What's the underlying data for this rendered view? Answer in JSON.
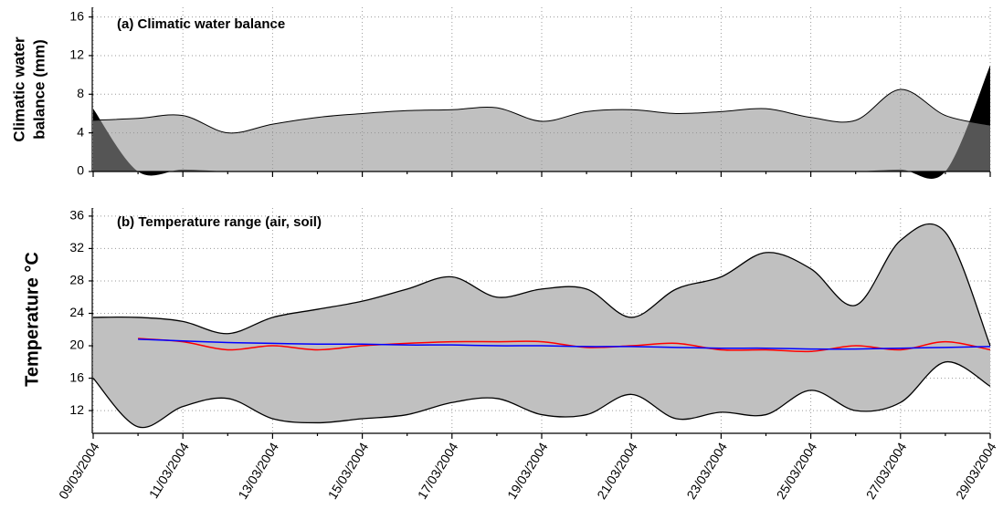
{
  "chart_data": [
    {
      "type": "area",
      "title": "(a) Climatic water balance",
      "ylabel": [
        "Climatic water",
        "balance (mm)"
      ],
      "series": [
        {
          "color": "#000000",
          "opacity": 1,
          "values": [
            6.5,
            0,
            0.2,
            0,
            0,
            0,
            0,
            0,
            0,
            0,
            0,
            0,
            0,
            0,
            0,
            0,
            0,
            0,
            0.2,
            0,
            11
          ]
        },
        {
          "color": "#929292",
          "opacity": 0.58,
          "values": [
            5.3,
            5.5,
            5.8,
            4.0,
            4.9,
            5.6,
            6.0,
            6.3,
            6.4,
            6.6,
            5.2,
            6.2,
            6.4,
            6.0,
            6.2,
            6.5,
            5.6,
            5.3,
            8.5,
            5.8,
            4.8
          ]
        }
      ],
      "ylim": [
        0,
        17
      ],
      "yticks": [
        0,
        4,
        8,
        12,
        16
      ],
      "grid": true
    },
    {
      "type": "line",
      "title": "(b) Temperature range (air, soil)",
      "ylabel": "Temperature °C",
      "categories": [
        "09/03/2004",
        null,
        "11/03/2004",
        null,
        "13/03/2004",
        null,
        "15/03/2004",
        null,
        "17/03/2004",
        null,
        "19/03/2004",
        null,
        "21/03/2004",
        null,
        "23/03/2004",
        null,
        "25/03/2004",
        null,
        "27/03/2004",
        null,
        "29/03/2004"
      ],
      "band": {
        "color": "#c0c0c0",
        "upper": [
          23.5,
          23.5,
          23,
          21.5,
          23.5,
          24.5,
          25.5,
          27,
          28.5,
          26,
          27,
          27,
          23.5,
          27,
          28.5,
          31.5,
          29.5,
          25,
          33,
          34,
          20
        ],
        "lower": [
          16,
          10,
          12.5,
          13.5,
          11,
          10.5,
          11,
          11.5,
          13,
          13.5,
          11.5,
          11.5,
          14,
          11,
          11.8,
          11.5,
          14.5,
          12,
          13,
          18,
          15
        ]
      },
      "series": [
        {
          "color": "#ff0000",
          "values": [
            null,
            20.9,
            20.5,
            19.5,
            20,
            19.5,
            20,
            20.3,
            20.5,
            20.5,
            20.5,
            19.8,
            20,
            20.3,
            19.5,
            19.5,
            19.3,
            20,
            19.5,
            20.5,
            19.5
          ]
        },
        {
          "color": "#0000ff",
          "values": [
            null,
            20.8,
            20.6,
            20.4,
            20.3,
            20.2,
            20.2,
            20.1,
            20.1,
            20.0,
            20.0,
            19.9,
            19.9,
            19.8,
            19.7,
            19.7,
            19.6,
            19.6,
            19.7,
            19.8,
            19.9
          ]
        }
      ],
      "ylim": [
        9.2,
        37
      ],
      "yticks": [
        12,
        16,
        20,
        24,
        28,
        32,
        36
      ],
      "grid": true
    }
  ]
}
